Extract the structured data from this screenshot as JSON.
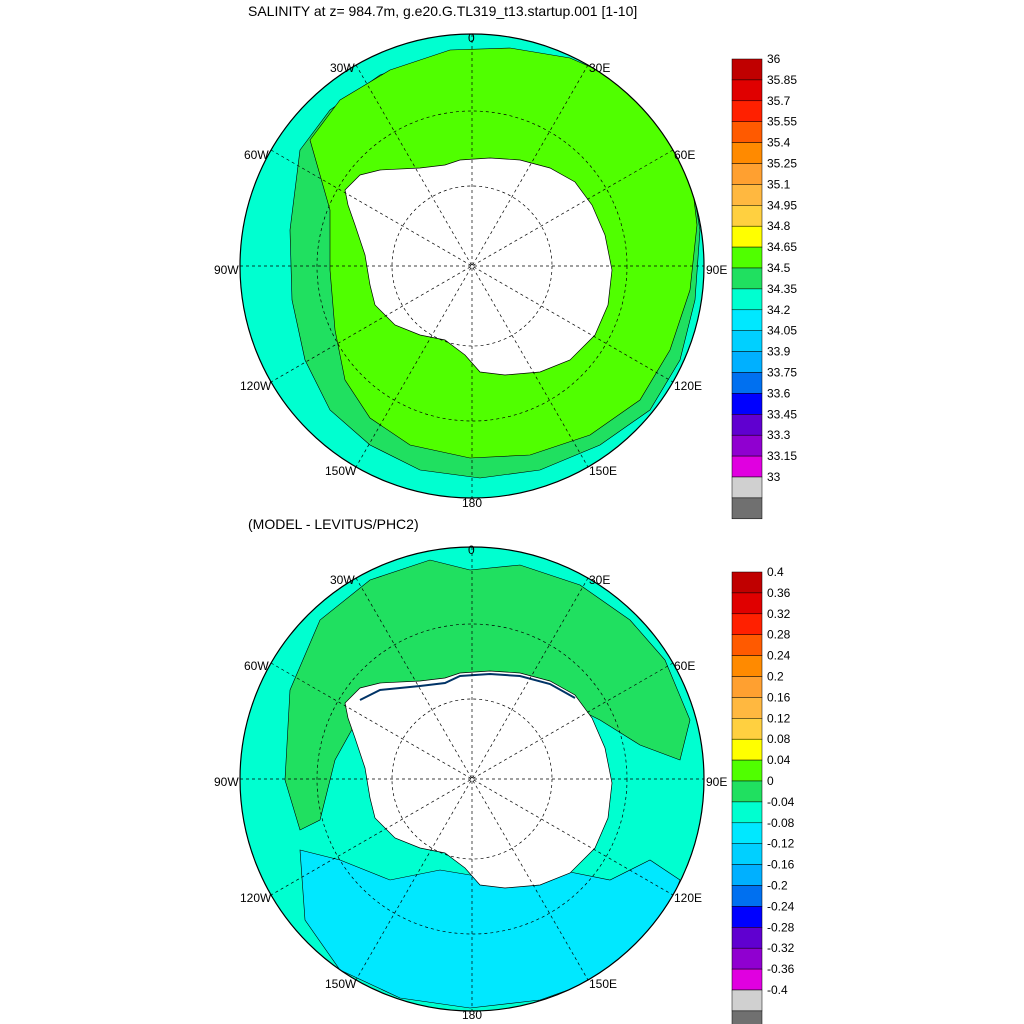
{
  "panels": [
    {
      "title": "SALINITY at z= 984.7m, g.e20.G.TL319_t13.startup.001 [1-10]",
      "lon_labels": {
        "top": "0",
        "left": "90W",
        "right": "90E",
        "bottom": "180",
        "nw": "30W",
        "ne": "30E",
        "wnw": "60W",
        "ene": "60E",
        "wsw": "120W",
        "ese": "120E",
        "ssw": "150W",
        "sse": "150E"
      },
      "colorbar": {
        "labels": [
          "36",
          "35.85",
          "35.7",
          "35.55",
          "35.4",
          "35.25",
          "35.1",
          "34.95",
          "34.8",
          "34.65",
          "34.5",
          "34.35",
          "34.2",
          "34.05",
          "33.9",
          "33.75",
          "33.6",
          "33.45",
          "33.3",
          "33.15",
          "33"
        ],
        "colors": [
          "#c00000",
          "#e00000",
          "#ff2000",
          "#ff5a00",
          "#ff8a00",
          "#ffa030",
          "#ffb840",
          "#ffd040",
          "#ffff00",
          "#50ff00",
          "#20e060",
          "#00ffd0",
          "#00e8ff",
          "#00d0ff",
          "#00b0ff",
          "#0070f0",
          "#0000ff",
          "#6000d0",
          "#9000d0",
          "#e000e0",
          "#d0d0d0",
          "#707070"
        ]
      },
      "field": {
        "ocean_color": "#00ffd0",
        "band_color": "#50ff00",
        "land_color": "#ffffff"
      }
    },
    {
      "title": "(MODEL - LEVITUS/PHC2)",
      "lon_labels": {
        "top": "0",
        "left": "90W",
        "right": "90E",
        "bottom": "180",
        "nw": "30W",
        "ne": "30E",
        "wnw": "60W",
        "ene": "60E",
        "wsw": "120W",
        "ese": "120E",
        "ssw": "150W",
        "sse": "150E"
      },
      "colorbar": {
        "labels": [
          "0.4",
          "0.36",
          "0.32",
          "0.28",
          "0.24",
          "0.2",
          "0.16",
          "0.12",
          "0.08",
          "0.04",
          "0",
          "-0.04",
          "-0.08",
          "-0.12",
          "-0.16",
          "-0.2",
          "-0.24",
          "-0.28",
          "-0.32",
          "-0.36",
          "-0.4"
        ],
        "colors": [
          "#c00000",
          "#e00000",
          "#ff2000",
          "#ff5a00",
          "#ff8a00",
          "#ffa030",
          "#ffb840",
          "#ffd040",
          "#ffff00",
          "#50ff00",
          "#20e060",
          "#00ffd0",
          "#00e8ff",
          "#00d0ff",
          "#00b0ff",
          "#0070f0",
          "#0000ff",
          "#6000d0",
          "#9000d0",
          "#e000e0",
          "#d0d0d0",
          "#707070"
        ]
      },
      "field": {
        "ocean_color": "#00ffd0",
        "band_color": "#20e060",
        "land_color": "#ffffff"
      }
    }
  ]
}
